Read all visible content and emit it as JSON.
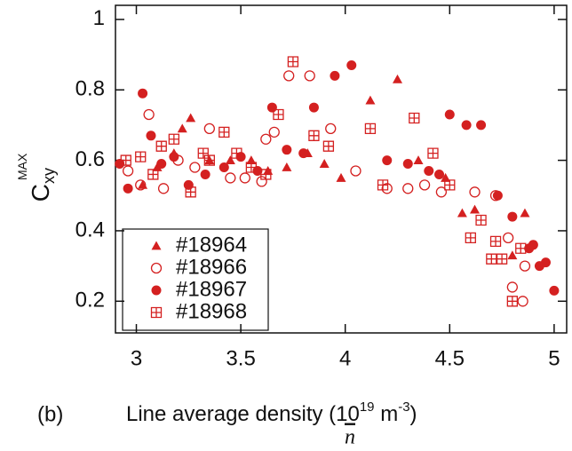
{
  "chart_data": {
    "type": "scatter",
    "panel_label": "(b)",
    "y_label": {
      "main": "C",
      "sub": "xy",
      "sup": "MAX"
    },
    "x_label": {
      "text": "Line average density (10",
      "sup1": "19",
      "mid": " m",
      "sup2": "-3",
      "end": ")"
    },
    "below_label": "n",
    "xlim": [
      2.9,
      5.06
    ],
    "ylim": [
      0.11,
      1.04
    ],
    "xticks": [
      3,
      3.5,
      4,
      4.5,
      5
    ],
    "yticks": [
      0.2,
      0.4,
      0.6,
      0.8,
      1
    ],
    "legend": "lower left",
    "series": [
      {
        "name": "#18964",
        "color": "#d42020",
        "marker": "triangle",
        "x": [
          3.03,
          3.1,
          3.18,
          3.22,
          3.26,
          3.35,
          3.45,
          3.55,
          3.63,
          3.72,
          3.82,
          3.9,
          3.98,
          4.12,
          4.25,
          4.35,
          4.48,
          4.56,
          4.62,
          4.8,
          4.86
        ],
        "values": [
          0.53,
          0.58,
          0.62,
          0.69,
          0.72,
          0.6,
          0.6,
          0.6,
          0.57,
          0.58,
          0.62,
          0.59,
          0.55,
          0.77,
          0.83,
          0.6,
          0.55,
          0.45,
          0.46,
          0.33,
          0.45
        ]
      },
      {
        "name": "#18966",
        "color": "#d42020",
        "marker": "open-circle",
        "x": [
          2.96,
          3.02,
          3.06,
          3.13,
          3.2,
          3.28,
          3.35,
          3.45,
          3.52,
          3.6,
          3.62,
          3.66,
          3.73,
          3.83,
          3.93,
          4.05,
          4.2,
          4.3,
          4.38,
          4.46,
          4.62,
          4.72,
          4.78,
          4.8,
          4.85,
          4.86
        ],
        "values": [
          0.57,
          0.53,
          0.73,
          0.52,
          0.6,
          0.58,
          0.69,
          0.55,
          0.55,
          0.54,
          0.66,
          0.68,
          0.84,
          0.84,
          0.69,
          0.57,
          0.52,
          0.52,
          0.53,
          0.51,
          0.51,
          0.5,
          0.38,
          0.24,
          0.2,
          0.3
        ]
      },
      {
        "name": "#18967",
        "color": "#d42020",
        "marker": "circle",
        "x": [
          2.92,
          2.96,
          3.03,
          3.07,
          3.12,
          3.18,
          3.25,
          3.33,
          3.42,
          3.5,
          3.58,
          3.65,
          3.72,
          3.8,
          3.85,
          3.95,
          4.03,
          4.2,
          4.3,
          4.4,
          4.45,
          4.5,
          4.58,
          4.65,
          4.73,
          4.8,
          4.88,
          4.93,
          4.96,
          5.0,
          4.9
        ],
        "values": [
          0.59,
          0.52,
          0.79,
          0.67,
          0.59,
          0.61,
          0.53,
          0.56,
          0.58,
          0.61,
          0.57,
          0.75,
          0.63,
          0.62,
          0.75,
          0.84,
          0.87,
          0.6,
          0.59,
          0.57,
          0.56,
          0.73,
          0.7,
          0.7,
          0.5,
          0.44,
          0.35,
          0.3,
          0.31,
          0.23,
          0.36
        ]
      },
      {
        "name": "#18968",
        "color": "#d42020",
        "marker": "box-cross",
        "x": [
          2.95,
          3.02,
          3.08,
          3.12,
          3.18,
          3.26,
          3.32,
          3.35,
          3.42,
          3.48,
          3.55,
          3.62,
          3.68,
          3.75,
          3.85,
          3.92,
          4.12,
          4.18,
          4.33,
          4.42,
          4.5,
          4.6,
          4.65,
          4.7,
          4.72,
          4.75,
          4.8,
          4.84
        ],
        "values": [
          0.6,
          0.61,
          0.56,
          0.64,
          0.66,
          0.51,
          0.62,
          0.6,
          0.68,
          0.62,
          0.58,
          0.56,
          0.73,
          0.88,
          0.67,
          0.64,
          0.69,
          0.53,
          0.72,
          0.62,
          0.53,
          0.38,
          0.43,
          0.32,
          0.37,
          0.32,
          0.2,
          0.35
        ]
      }
    ]
  }
}
